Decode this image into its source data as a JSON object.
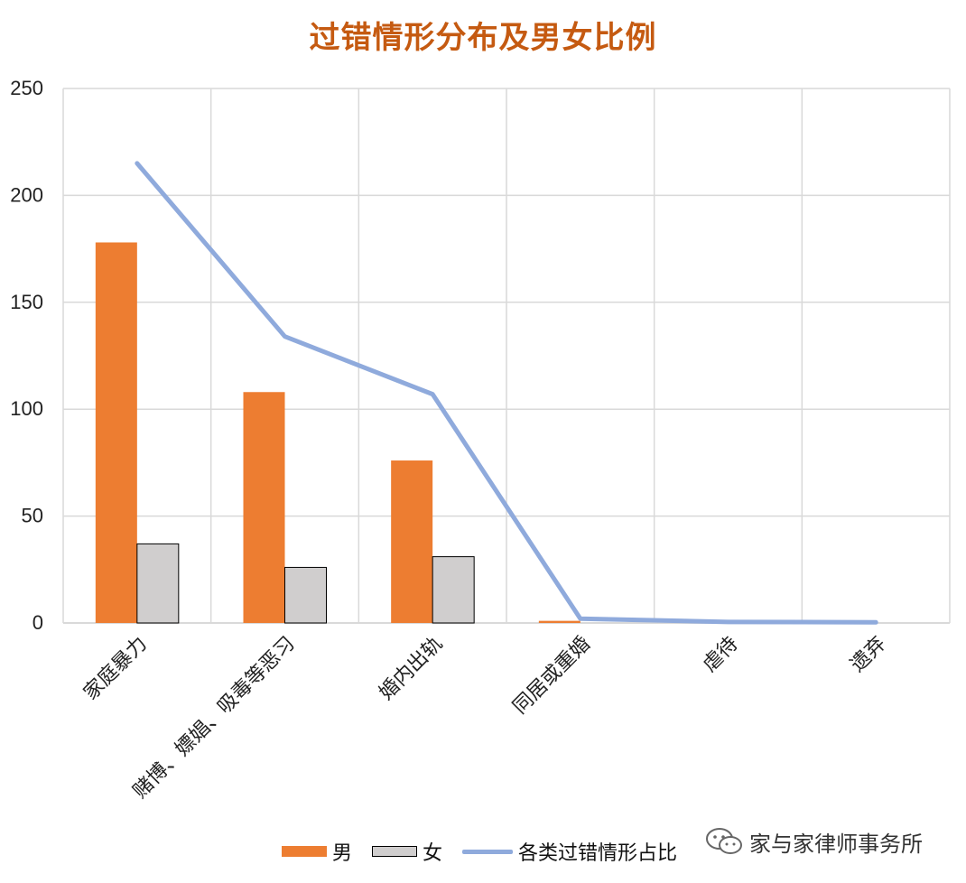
{
  "chart_data": {
    "type": "bar",
    "title": "过错情形分布及男女比例",
    "categories": [
      "家庭暴力",
      "赌博、嫖娼、吸毒等恶习",
      "婚内出轨",
      "同居或重婚",
      "虐待",
      "遗弃"
    ],
    "ylim": [
      0,
      250
    ],
    "yticks": [
      0,
      50,
      100,
      150,
      200,
      250
    ],
    "grid": true,
    "legend_position": "bottom",
    "series": [
      {
        "name": "男",
        "type": "bar",
        "color": "#ed7d31",
        "values": [
          178,
          108,
          76,
          1,
          0,
          0
        ]
      },
      {
        "name": "女",
        "type": "bar",
        "color": "#d0cece",
        "values": [
          37,
          26,
          31,
          0,
          0,
          0
        ]
      },
      {
        "name": "各类过错情形占比",
        "type": "line",
        "color": "#8faadc",
        "values": [
          215,
          134,
          107,
          2,
          0.5,
          0.3
        ]
      }
    ]
  },
  "watermark": {
    "text": "家与家律师事务所",
    "icon": "wechat-icon"
  }
}
